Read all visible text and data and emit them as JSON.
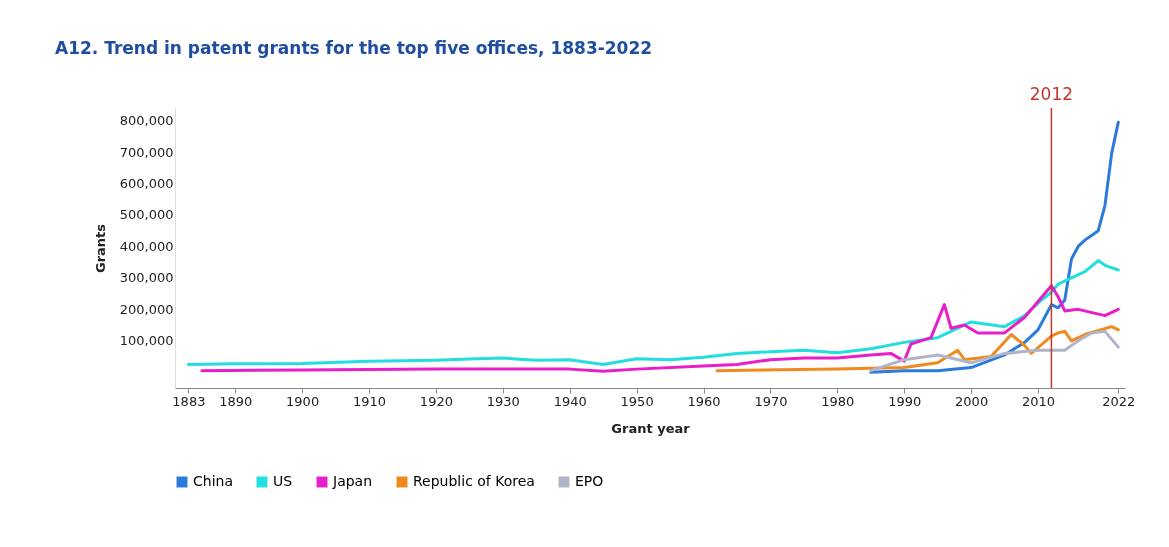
{
  "chart_data": {
    "type": "line",
    "title": "A12.   Trend in patent grants for the top five offices, 1883-2022",
    "xlabel": "Grant year",
    "ylabel": "Grants",
    "xlim": [
      1881,
      2023
    ],
    "xticks": [
      1883,
      1890,
      1900,
      1910,
      1920,
      1930,
      1940,
      1950,
      1960,
      1970,
      1980,
      1990,
      2000,
      2010,
      2022
    ],
    "ylim": [
      -50000,
      840000
    ],
    "yticks": [
      {
        "value": 100000,
        "label": "100,000"
      },
      {
        "value": 200000,
        "label": "200,000"
      },
      {
        "value": 300000,
        "label": "300,000"
      },
      {
        "value": 400000,
        "label": "400,000"
      },
      {
        "value": 500000,
        "label": "500,000"
      },
      {
        "value": 600000,
        "label": "600,000"
      },
      {
        "value": 700000,
        "label": "700,000"
      },
      {
        "value": 800000,
        "label": "800,000"
      }
    ],
    "grid": false,
    "legend": "bottom",
    "marker": "none",
    "line_style": "solid",
    "ref_lines": [
      {
        "axis": "x",
        "value": 2012,
        "label": "2012",
        "color": "#c0392b"
      }
    ],
    "series": [
      {
        "name": "China",
        "color": "#2b7bdc",
        "x": [
          1985,
          1990,
          1995,
          2000,
          2005,
          2008,
          2010,
          2011,
          2012,
          2013,
          2014,
          2015,
          2016,
          2017,
          2018,
          2019,
          2020,
          2021,
          2022
        ],
        "values": [
          0,
          5000,
          5000,
          15000,
          55000,
          95000,
          135000,
          175000,
          215000,
          205000,
          230000,
          360000,
          400000,
          420000,
          435000,
          450000,
          530000,
          695000,
          795000
        ]
      },
      {
        "name": "US",
        "color": "#22dede",
        "x": [
          1883,
          1890,
          1900,
          1910,
          1920,
          1925,
          1930,
          1935,
          1940,
          1945,
          1950,
          1955,
          1960,
          1965,
          1970,
          1975,
          1980,
          1985,
          1990,
          1995,
          2000,
          2005,
          2008,
          2010,
          2012,
          2013,
          2015,
          2017,
          2019,
          2020,
          2022
        ],
        "values": [
          25000,
          27000,
          28000,
          35000,
          38000,
          42000,
          45000,
          38000,
          40000,
          25000,
          43000,
          40000,
          48000,
          60000,
          65000,
          70000,
          62000,
          75000,
          95000,
          110000,
          160000,
          145000,
          180000,
          220000,
          255000,
          280000,
          300000,
          320000,
          355000,
          340000,
          325000
        ]
      },
      {
        "name": "Japan",
        "color": "#e81ec8",
        "x": [
          1885,
          1900,
          1920,
          1940,
          1945,
          1950,
          1960,
          1965,
          1970,
          1975,
          1980,
          1985,
          1988,
          1990,
          1991,
          1994,
          1996,
          1997,
          1999,
          2001,
          2005,
          2008,
          2012,
          2013,
          2014,
          2016,
          2020,
          2022
        ],
        "values": [
          5000,
          7000,
          10000,
          10000,
          3000,
          10000,
          20000,
          25000,
          40000,
          45000,
          45000,
          55000,
          60000,
          35000,
          90000,
          110000,
          215000,
          140000,
          150000,
          125000,
          125000,
          175000,
          275000,
          240000,
          195000,
          200000,
          180000,
          200000
        ]
      },
      {
        "name": "Republic of Korea",
        "color": "#f08a1e",
        "x": [
          1962,
          1980,
          1990,
          1995,
          1998,
          1999,
          2003,
          2006,
          2008,
          2009,
          2012,
          2013,
          2014,
          2015,
          2017,
          2021,
          2022
        ],
        "values": [
          5000,
          10000,
          15000,
          30000,
          70000,
          40000,
          50000,
          120000,
          85000,
          60000,
          115000,
          125000,
          130000,
          100000,
          120000,
          145000,
          135000
        ]
      },
      {
        "name": "EPO",
        "color": "#b0b4c8",
        "x": [
          1985,
          1990,
          1995,
          2000,
          2005,
          2010,
          2014,
          2016,
          2018,
          2020,
          2022
        ],
        "values": [
          5000,
          40000,
          55000,
          30000,
          60000,
          70000,
          70000,
          100000,
          125000,
          130000,
          80000
        ]
      }
    ]
  }
}
